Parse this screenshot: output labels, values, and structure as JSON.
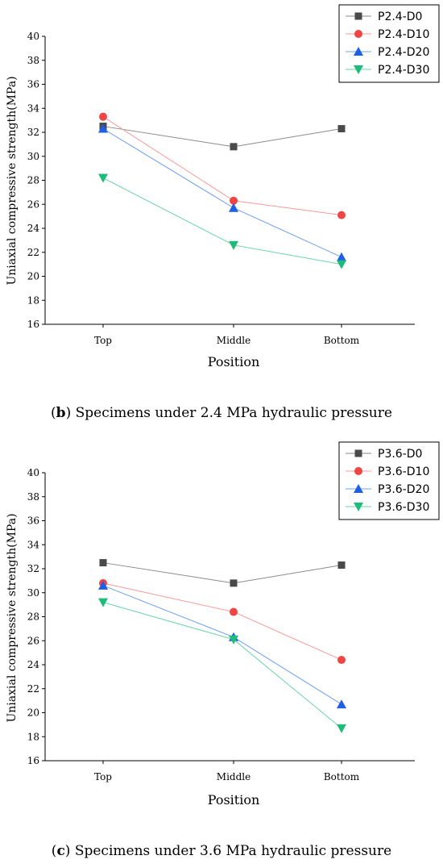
{
  "colors": {
    "D0": "#4a4a4a",
    "D10": "#f04545",
    "D20": "#1f5fe6",
    "D30": "#1ebc7a",
    "D0_line": "#8a8a8a",
    "D10_line": "#f59b9b",
    "D20_line": "#6fa0ef",
    "D30_line": "#6ad3a7"
  },
  "chart_data": [
    {
      "type": "line",
      "panel_label": "b",
      "caption_rest": " Specimens under 2.4 MPa hydraulic pressure",
      "xlabel": "Position",
      "ylabel": "Uniaxial compressive strength(MPa)",
      "categories": [
        "Top",
        "Middle",
        "Bottom"
      ],
      "ylim": [
        16,
        40
      ],
      "yticks": [
        "16",
        "18",
        "20",
        "22",
        "24",
        "26",
        "28",
        "30",
        "32",
        "34",
        "36",
        "38",
        "40"
      ],
      "legend_position": "top-right",
      "series": [
        {
          "name": "P2.4-D0",
          "marker": "square",
          "values": [
            32.5,
            30.8,
            32.3
          ]
        },
        {
          "name": "P2.4-D10",
          "marker": "circle",
          "values": [
            33.3,
            26.3,
            25.1
          ]
        },
        {
          "name": "P2.4-D20",
          "marker": "triangle-up",
          "values": [
            32.3,
            25.7,
            21.6
          ]
        },
        {
          "name": "P2.4-D30",
          "marker": "triangle-down",
          "values": [
            28.2,
            22.6,
            21.0
          ]
        }
      ]
    },
    {
      "type": "line",
      "panel_label": "c",
      "caption_rest": " Specimens under 3.6 MPa hydraulic pressure",
      "xlabel": "Position",
      "ylabel": "Uniaxial compressive strength(MPa)",
      "categories": [
        "Top",
        "Middle",
        "Bottom"
      ],
      "ylim": [
        16,
        40
      ],
      "yticks": [
        "16",
        "18",
        "20",
        "22",
        "24",
        "26",
        "28",
        "30",
        "32",
        "34",
        "36",
        "38",
        "40"
      ],
      "legend_position": "top-right",
      "series": [
        {
          "name": "P3.6-D0",
          "marker": "square",
          "values": [
            32.5,
            30.8,
            32.3
          ]
        },
        {
          "name": "P3.6-D10",
          "marker": "circle",
          "values": [
            30.8,
            28.4,
            24.4
          ]
        },
        {
          "name": "P3.6-D20",
          "marker": "triangle-up",
          "values": [
            30.6,
            26.3,
            20.7
          ]
        },
        {
          "name": "P3.6-D30",
          "marker": "triangle-down",
          "values": [
            29.2,
            26.1,
            18.7
          ]
        }
      ]
    }
  ]
}
